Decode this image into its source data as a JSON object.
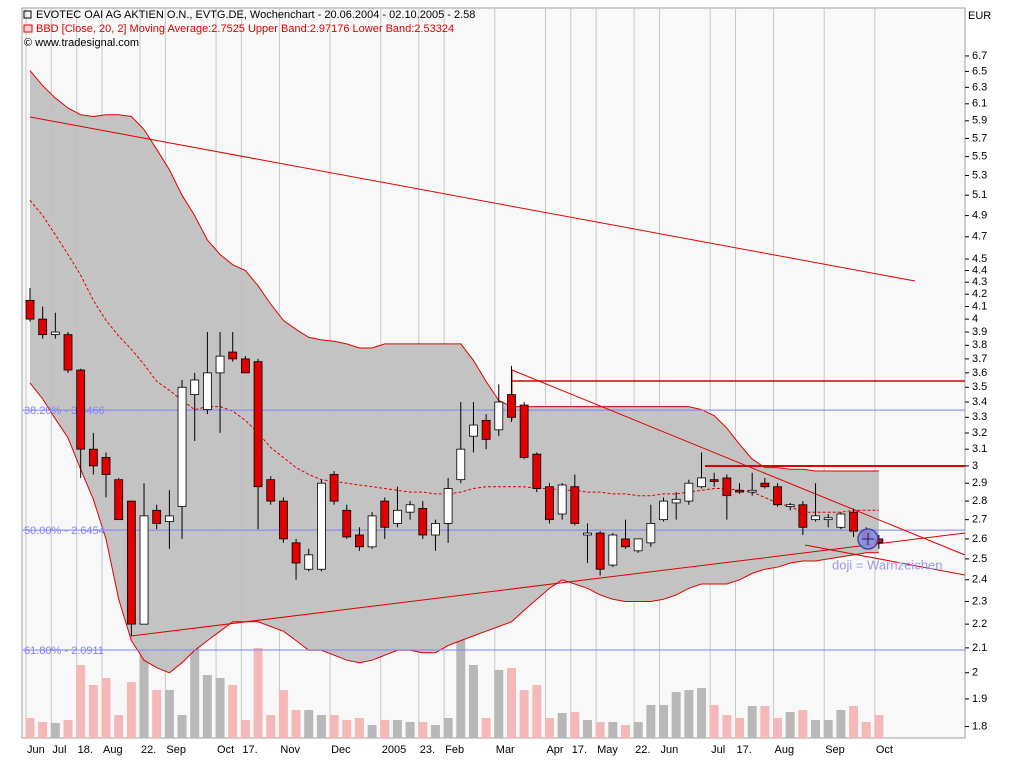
{
  "chart_data": {
    "type": "candlestick",
    "title": "EVOTEC OAI AG AKTIEN O.N., EVTG.DE, Wochenchart - 20.06.2004 - 02.10.2005 - 2.58",
    "subtitle": "BBD [Close, 20, 2] Moving Average:2.7525 Upper Band:2.97176 Lower Band:2.53324",
    "source": "© www.tradesignal.com",
    "currency": "EUR",
    "annotation": "doji = Warnzeichen",
    "log_scale": true,
    "categories": [
      "Jun",
      null,
      "Jul",
      null,
      "18.",
      null,
      "Aug",
      null,
      null,
      "22.",
      null,
      "Sep",
      null,
      null,
      null,
      "Oct",
      null,
      "17.",
      null,
      null,
      "Nov",
      null,
      null,
      null,
      "Dec",
      null,
      null,
      null,
      "2005",
      null,
      null,
      "23.",
      null,
      "Feb",
      null,
      null,
      null,
      "Mar",
      null,
      null,
      null,
      "Apr",
      null,
      "17.",
      null,
      "May",
      null,
      null,
      "22.",
      null,
      "Jun",
      null,
      null,
      null,
      "Jul",
      null,
      "17.",
      null,
      null,
      "Aug",
      null,
      null,
      null,
      "Sep",
      null,
      null,
      null,
      "Oct"
    ],
    "open": [
      4.15,
      4.0,
      3.88,
      3.88,
      3.62,
      3.1,
      3.05,
      2.92,
      2.8,
      2.2,
      2.75,
      2.69,
      2.77,
      3.45,
      3.35,
      3.6,
      3.75,
      3.7,
      3.68,
      2.92,
      2.8,
      2.58,
      2.45,
      2.45,
      2.95,
      2.75,
      2.62,
      2.56,
      2.8,
      2.68,
      2.74,
      2.76,
      2.62,
      2.68,
      2.92,
      3.18,
      3.28,
      3.22,
      3.45,
      3.38,
      3.07,
      2.88,
      2.73,
      2.88,
      2.62,
      2.63,
      2.47,
      2.6,
      2.54,
      2.58,
      2.7,
      2.79,
      2.8,
      2.88,
      2.92,
      2.93,
      2.86,
      2.85,
      2.9,
      2.88,
      2.77,
      2.78,
      2.7,
      2.7,
      2.66,
      2.74,
      2.64,
      2.6
    ],
    "high": [
      4.25,
      4.1,
      4.05,
      3.9,
      3.63,
      3.2,
      3.08,
      2.93,
      2.8,
      2.9,
      2.78,
      2.86,
      3.55,
      3.6,
      3.9,
      3.9,
      3.9,
      3.72,
      3.7,
      2.94,
      2.82,
      2.6,
      2.55,
      2.92,
      2.97,
      2.78,
      2.66,
      2.74,
      2.82,
      2.88,
      2.8,
      2.8,
      2.7,
      2.93,
      3.4,
      3.4,
      3.32,
      3.52,
      3.65,
      3.4,
      3.08,
      2.9,
      2.9,
      2.95,
      2.68,
      2.64,
      2.63,
      2.7,
      2.6,
      2.78,
      2.82,
      2.85,
      2.92,
      3.08,
      2.96,
      2.95,
      2.9,
      2.96,
      2.93,
      2.9,
      2.79,
      2.8,
      2.9,
      2.73,
      2.74,
      2.76,
      2.66,
      2.62
    ],
    "low": [
      3.98,
      3.85,
      3.85,
      3.6,
      2.93,
      2.95,
      2.82,
      2.7,
      2.15,
      2.2,
      2.65,
      2.55,
      2.6,
      3.15,
      3.32,
      3.2,
      3.68,
      3.6,
      2.65,
      2.78,
      2.58,
      2.4,
      2.44,
      2.44,
      2.78,
      2.6,
      2.54,
      2.55,
      2.6,
      2.66,
      2.7,
      2.6,
      2.54,
      2.58,
      2.9,
      3.08,
      3.1,
      3.18,
      3.27,
      3.04,
      2.85,
      2.68,
      2.7,
      2.67,
      2.48,
      2.42,
      2.46,
      2.55,
      2.53,
      2.56,
      2.69,
      2.7,
      2.78,
      2.87,
      2.88,
      2.7,
      2.84,
      2.83,
      2.87,
      2.77,
      2.75,
      2.62,
      2.69,
      2.66,
      2.65,
      2.61,
      2.56,
      2.55
    ],
    "close": [
      4.0,
      3.88,
      3.9,
      3.62,
      3.1,
      3.0,
      2.95,
      2.7,
      2.2,
      2.72,
      2.68,
      2.72,
      3.5,
      3.55,
      3.6,
      3.72,
      3.7,
      3.6,
      2.88,
      2.8,
      2.6,
      2.48,
      2.52,
      2.9,
      2.8,
      2.61,
      2.56,
      2.72,
      2.66,
      2.75,
      2.78,
      2.62,
      2.68,
      2.87,
      3.1,
      3.25,
      3.16,
      3.4,
      3.3,
      3.05,
      2.87,
      2.7,
      2.89,
      2.68,
      2.63,
      2.45,
      2.62,
      2.56,
      2.6,
      2.68,
      2.8,
      2.81,
      2.9,
      2.93,
      2.91,
      2.83,
      2.85,
      2.86,
      2.88,
      2.78,
      2.78,
      2.66,
      2.72,
      2.71,
      2.73,
      2.64,
      2.6,
      2.58
    ],
    "volume": [
      20,
      16,
      15,
      18,
      73,
      53,
      60,
      23,
      56,
      88,
      48,
      48,
      23,
      93,
      63,
      60,
      53,
      18,
      90,
      23,
      48,
      28,
      28,
      23,
      23,
      18,
      20,
      13,
      18,
      18,
      16,
      16,
      13,
      20,
      98,
      73,
      20,
      68,
      70,
      48,
      53,
      20,
      25,
      26,
      18,
      16,
      16,
      13,
      16,
      33,
      33,
      46,
      48,
      50,
      33,
      23,
      20,
      32,
      32,
      20,
      26,
      28,
      18,
      18,
      28,
      32,
      16,
      23
    ],
    "bollinger": {
      "upper": [
        6.51,
        6.32,
        6.17,
        6.05,
        5.97,
        5.95,
        5.97,
        5.97,
        5.95,
        5.8,
        5.58,
        5.36,
        5.1,
        4.9,
        4.67,
        4.54,
        4.45,
        4.4,
        4.27,
        4.12,
        3.99,
        3.92,
        3.86,
        3.84,
        3.83,
        3.81,
        3.78,
        3.78,
        3.81,
        3.81,
        3.81,
        3.81,
        3.81,
        3.81,
        3.81,
        3.69,
        3.54,
        3.41,
        3.37,
        3.37,
        3.37,
        3.37,
        3.37,
        3.37,
        3.37,
        3.37,
        3.37,
        3.37,
        3.37,
        3.37,
        3.37,
        3.37,
        3.37,
        3.35,
        3.31,
        3.23,
        3.13,
        3.04,
        2.99,
        2.99,
        2.98,
        2.98,
        2.97,
        2.97,
        2.97,
        2.97,
        2.97,
        2.97
      ],
      "middle": [
        5.05,
        4.9,
        4.72,
        4.54,
        4.36,
        4.15,
        3.99,
        3.87,
        3.77,
        3.66,
        3.54,
        3.48,
        3.41,
        3.35,
        3.37,
        3.37,
        3.34,
        3.28,
        3.2,
        3.11,
        3.05,
        2.99,
        2.95,
        2.92,
        2.91,
        2.9,
        2.89,
        2.88,
        2.87,
        2.86,
        2.85,
        2.85,
        2.84,
        2.84,
        2.85,
        2.87,
        2.88,
        2.88,
        2.88,
        2.88,
        2.87,
        2.87,
        2.86,
        2.86,
        2.85,
        2.85,
        2.84,
        2.84,
        2.83,
        2.83,
        2.84,
        2.84,
        2.85,
        2.86,
        2.87,
        2.87,
        2.86,
        2.85,
        2.82,
        2.79,
        2.77,
        2.74,
        2.74,
        2.74,
        2.74,
        2.75,
        2.75,
        2.75
      ],
      "lower": [
        3.53,
        3.42,
        3.29,
        3.17,
        2.98,
        2.81,
        2.6,
        2.31,
        2.13,
        2.05,
        2.02,
        2.0,
        2.04,
        2.09,
        2.13,
        2.17,
        2.21,
        2.21,
        2.21,
        2.19,
        2.17,
        2.13,
        2.09,
        2.09,
        2.07,
        2.05,
        2.04,
        2.05,
        2.07,
        2.09,
        2.09,
        2.08,
        2.08,
        2.11,
        2.13,
        2.15,
        2.17,
        2.19,
        2.21,
        2.26,
        2.31,
        2.36,
        2.4,
        2.38,
        2.36,
        2.33,
        2.31,
        2.3,
        2.3,
        2.3,
        2.31,
        2.33,
        2.36,
        2.38,
        2.38,
        2.38,
        2.4,
        2.43,
        2.45,
        2.46,
        2.48,
        2.49,
        2.49,
        2.5,
        2.51,
        2.52,
        2.53,
        2.53
      ]
    },
    "fibonacci": [
      {
        "value": 3.3466,
        "label": "38.20% - 3.3466"
      },
      {
        "value": 2.6454,
        "label": "50.00% - 2.6454"
      },
      {
        "value": 2.0911,
        "label": "61.80% - 2.0911"
      }
    ],
    "ylim": [
      1.76,
      7.36
    ],
    "yticks": [
      1.8,
      1.9,
      2,
      2.1,
      2.2,
      2.3,
      2.4,
      2.5,
      2.6,
      2.7,
      2.8,
      2.9,
      3,
      3.1,
      3.2,
      3.3,
      3.4,
      3.5,
      3.6,
      3.7,
      3.8,
      3.9,
      4,
      4.1,
      4.2,
      4.3,
      4.4,
      4.5,
      4.7,
      4.9,
      5.1,
      5.3,
      5.5,
      5.7,
      5.9,
      6.1,
      6.3,
      6.5,
      6.7
    ],
    "colors": {
      "up": "#ffffff",
      "down": "#e00000",
      "band_fill": "#c0c0c0",
      "band_line": "#e00000",
      "fib": "#8080ff",
      "volume_up": "#b8b8b8",
      "volume_down": "#f4b8b8"
    }
  }
}
